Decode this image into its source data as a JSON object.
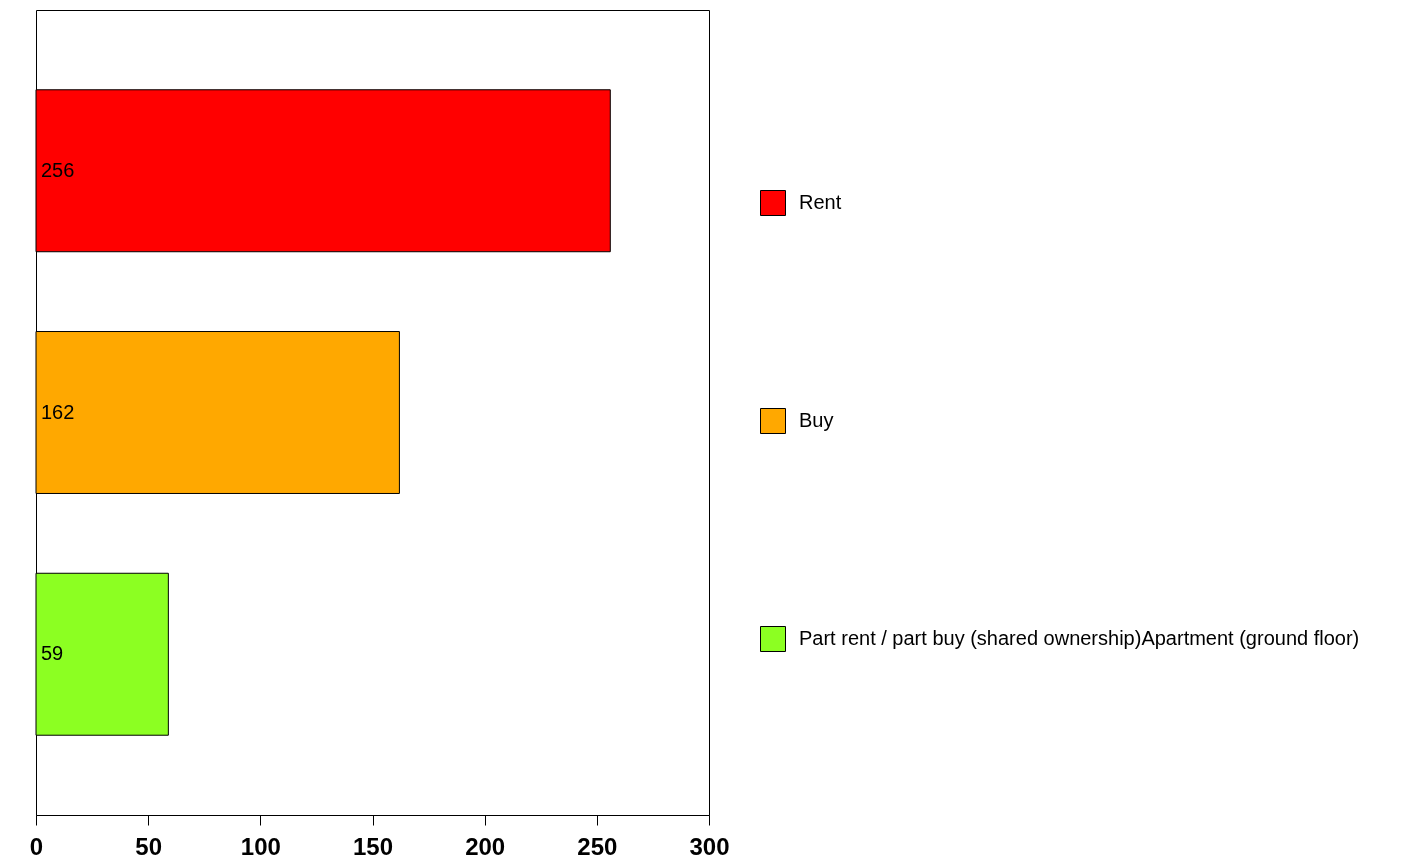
{
  "chart_data": {
    "type": "bar",
    "orientation": "horizontal",
    "stacked": true,
    "categories": [
      null,
      null,
      null
    ],
    "series": [
      {
        "name": "Rent",
        "color": "#ff0000",
        "values": [
          256,
          null,
          null
        ]
      },
      {
        "name": "Buy",
        "color": "#ffa800",
        "values": [
          null,
          162,
          null
        ]
      },
      {
        "name": "Part rent / part buy (shared ownership)Apartment (ground floor)",
        "color": "#8cff22",
        "values": [
          null,
          null,
          59
        ]
      }
    ],
    "xlim": [
      0,
      300
    ],
    "xticks": [
      0,
      50,
      100,
      150,
      200,
      250,
      300
    ],
    "data_labels": true,
    "legend": "right",
    "tick_labels": "x",
    "grid": false
  }
}
